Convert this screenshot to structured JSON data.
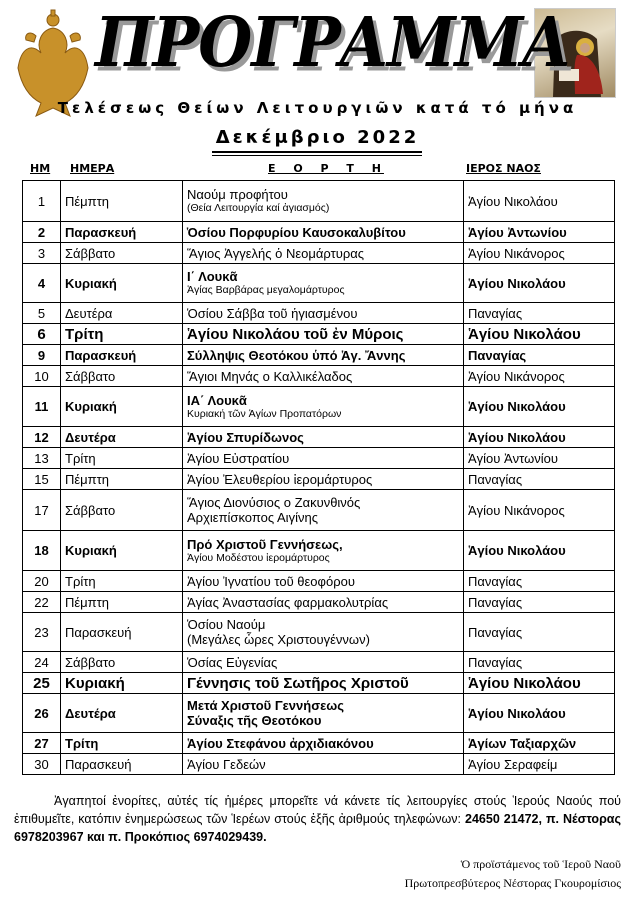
{
  "header": {
    "title": "ΠΡΟΓΡΑΜΜΑ",
    "subtitle": "Τελέσεως Θείων Λειτουργιῶν κατά τό μήνα",
    "month": "Δεκέμβριο 2022"
  },
  "columns": {
    "num": "ΗΜ",
    "day": "ΗΜΕΡΑ",
    "feast": "Ε Ο Ρ Τ Η",
    "church": "ΙΕΡΟΣ ΝΑΟΣ"
  },
  "rows": [
    {
      "num": "1",
      "day": "Πέμπτη",
      "feast": "Ναούμ προφήτου",
      "note": "(Θεία Λειτουργία καί ἁγιασμός)",
      "church": "Ἁγίου Νικολάου",
      "emphasis": "normal",
      "note_style": "small",
      "h": 41
    },
    {
      "num": "2",
      "day": "Παρασκευή",
      "feast": "Ὁσίου Πορφυρίου Καυσοκαλυβίτου",
      "church": "Ἁγίου Ἀντωνίου",
      "emphasis": "bold",
      "h": 20
    },
    {
      "num": "3",
      "day": "Σάββατο",
      "feast": "Ἅγιος Ἀγγελής ὁ Νεομάρτυρας",
      "church": "Ἁγίου Νικάνορος",
      "emphasis": "normal",
      "h": 22
    },
    {
      "num": "4",
      "day": "Κυριακή",
      "feast": "Ι΄ Λουκᾶ",
      "note": "Ἁγίας Βαρβάρας μεγαλομάρτυρος",
      "church": "Ἁγίου Νικολάου",
      "emphasis": "bold",
      "note_style": "small",
      "h": 39
    },
    {
      "num": "5",
      "day": "Δευτέρα",
      "feast": "Ὁσίου Σάββα τοῦ ἡγιασμένου",
      "church": "Παναγίας",
      "emphasis": "normal",
      "h": 20
    },
    {
      "num": "6",
      "day": "Τρίτη",
      "feast": "Ἁγίου Νικολάου τοῦ ἐν Μύροις",
      "church": "Ἁγίου Νικολάου",
      "emphasis": "big",
      "h": 25
    },
    {
      "num": "9",
      "day": "Παρασκευή",
      "feast": "Σύλληψις Θεοτόκου ὑπό Ἁγ. Ἄννης",
      "church": "Παναγίας",
      "emphasis": "bold",
      "h": 22
    },
    {
      "num": "10",
      "day": "Σάββατο",
      "feast": "Ἅγιοι Μηνάς ο Καλλικέλαδος",
      "church": "Ἁγίου Νικάνορος",
      "emphasis": "normal",
      "h": 21
    },
    {
      "num": "11",
      "day": "Κυριακή",
      "feast": "ΙΑ΄ Λουκᾶ",
      "note": "Κυριακή τῶν Ἁγίων Προπατόρων",
      "church": "Ἁγίου Νικολάου",
      "emphasis": "bold",
      "note_style": "small",
      "h": 40
    },
    {
      "num": "12",
      "day": "Δευτέρα",
      "feast": "Ἁγίου Σπυρίδωνος",
      "church": "Ἁγίου Νικολάου",
      "emphasis": "bold",
      "h": 22
    },
    {
      "num": "13",
      "day": "Τρίτη",
      "feast": "Ἁγίου Εὐστρατίου",
      "church": "Ἁγίου Ἀντωνίου",
      "emphasis": "normal",
      "h": 22
    },
    {
      "num": "15",
      "day": "Πέμπτη",
      "feast": "Ἁγίου Ἐλευθερίου ἱερομάρτυρος",
      "church": "Παναγίας",
      "emphasis": "normal",
      "h": 23
    },
    {
      "num": "17",
      "day": "Σάββατο",
      "feast": "Ἅγιος Διονύσιος ο Ζακυνθινός",
      "note": "Αρχιεπίσκοπος Αιγίνης",
      "church": "Ἁγίου Νικάνορος",
      "emphasis": "normal",
      "note_style": "same",
      "h": 41
    },
    {
      "num": "18",
      "day": "Κυριακή",
      "feast": "Πρό Χριστοῦ Γεννήσεως,",
      "note": "Ἁγίου Μοδέστου ἱερομάρτυρος",
      "church": "Ἁγίου Νικολάου",
      "emphasis": "bold",
      "note_style": "small",
      "h": 40
    },
    {
      "num": "20",
      "day": "Τρίτη",
      "feast": "Ἁγίου Ἰγνατίου τοῦ θεοφόρου",
      "church": "Παναγίας",
      "emphasis": "normal",
      "h": 20
    },
    {
      "num": "22",
      "day": "Πέμπτη",
      "feast": "Ἁγίας Ἀναστασίας φαρμακολυτρίας",
      "church": "Παναγίας",
      "emphasis": "normal",
      "h": 20
    },
    {
      "num": "23",
      "day": "Παρασκευή",
      "feast": "Ὁσίου Ναούμ",
      "note": "(Μεγάλες ὧρες Χριστουγέννων)",
      "church": "Παναγίας",
      "emphasis": "normal",
      "note_style": "same",
      "h": 39
    },
    {
      "num": "24",
      "day": "Σάββατο",
      "feast": "Ὁσίας Εὐγενίας",
      "church": "Παναγίας",
      "emphasis": "normal",
      "h": 24
    },
    {
      "num": "25",
      "day": "Κυριακή",
      "feast": "Γέννησις τοῦ  Σωτῆρος Χριστοῦ",
      "church": "Ἁγίου Νικολάου",
      "emphasis": "big",
      "h": 25
    },
    {
      "num": "26",
      "day": "Δευτέρα",
      "feast": "Μετά Χριστοῦ Γεννήσεως",
      "note": "Σύναξις τῆς Θεοτόκου",
      "church": "Ἁγίου Νικολάου",
      "emphasis": "bold",
      "note_style": "bold",
      "h": 39
    },
    {
      "num": "27",
      "day": "Τρίτη",
      "feast": "Ἁγίου Στεφάνου ἀρχιδιακόνου",
      "church": "Ἁγίων Ταξιαρχῶν",
      "emphasis": "bold",
      "h": 21
    },
    {
      "num": "30",
      "day": "Παρασκευή",
      "feast": "Ἁγίου Γεδεών",
      "church": "Ἁγίου Σεραφείμ",
      "emphasis": "normal",
      "h": 20
    }
  ],
  "footer": {
    "text": "Ἀγαπητοί ἐνορίτες, αὐτές τίς ἡμέρες μπορεῖτε νά κάνετε τίς λειτουργίες στούς Ἱερούς Ναούς πού ἐπιθυμεῖτε, κατόπιν ἐνημερώσεως τῶν Ἱερέων στούς ἑξῆς ἀριθμούς τηλεφώνων:",
    "phones": "24650 21472, π. Νέστορας 6978203967 και π. Προκόπιος 6974029439.",
    "sig_line1": "Ὁ προϊστάμενος τοῦ  Ἱεροῦ Ναοῦ",
    "sig_line2": "Πρωτοπρεσβύτερος Νέστορας Γκουρομίσιος"
  }
}
